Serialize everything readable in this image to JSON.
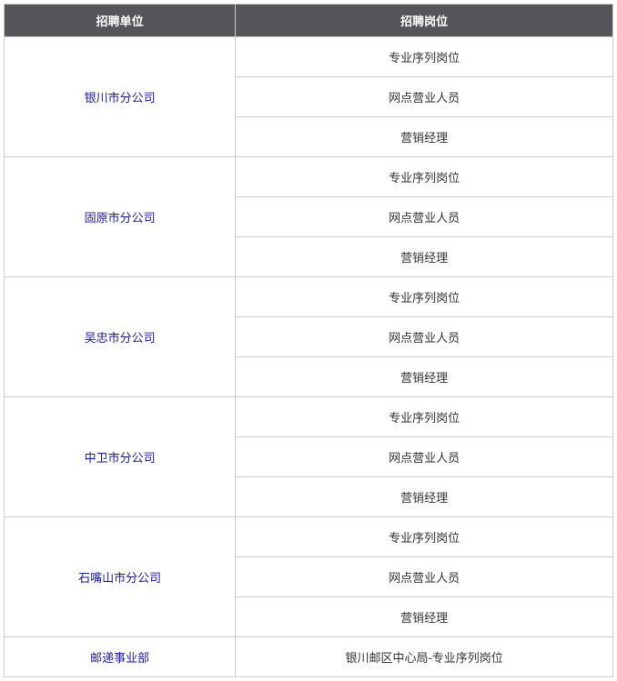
{
  "table": {
    "header_bg": "#555559",
    "header_color": "#ffffff",
    "border_color": "#cccccc",
    "org_text_color": "#1a1aaa",
    "cell_text_color": "#333333",
    "columns": [
      {
        "key": "org",
        "label": "招聘单位"
      },
      {
        "key": "pos",
        "label": "招聘岗位"
      }
    ],
    "groups": [
      {
        "org": "银川市分公司",
        "positions": [
          "专业序列岗位",
          "网点营业人员",
          "营销经理"
        ]
      },
      {
        "org": "固原市分公司",
        "positions": [
          "专业序列岗位",
          "网点营业人员",
          "营销经理"
        ]
      },
      {
        "org": "吴忠市分公司",
        "positions": [
          "专业序列岗位",
          "网点营业人员",
          "营销经理"
        ]
      },
      {
        "org": "中卫市分公司",
        "positions": [
          "专业序列岗位",
          "网点营业人员",
          "营销经理"
        ]
      },
      {
        "org": "石嘴山市分公司",
        "positions": [
          "专业序列岗位",
          "网点营业人员",
          "营销经理"
        ]
      },
      {
        "org": "邮递事业部",
        "positions": [
          "银川邮区中心局-专业序列岗位"
        ]
      }
    ]
  }
}
